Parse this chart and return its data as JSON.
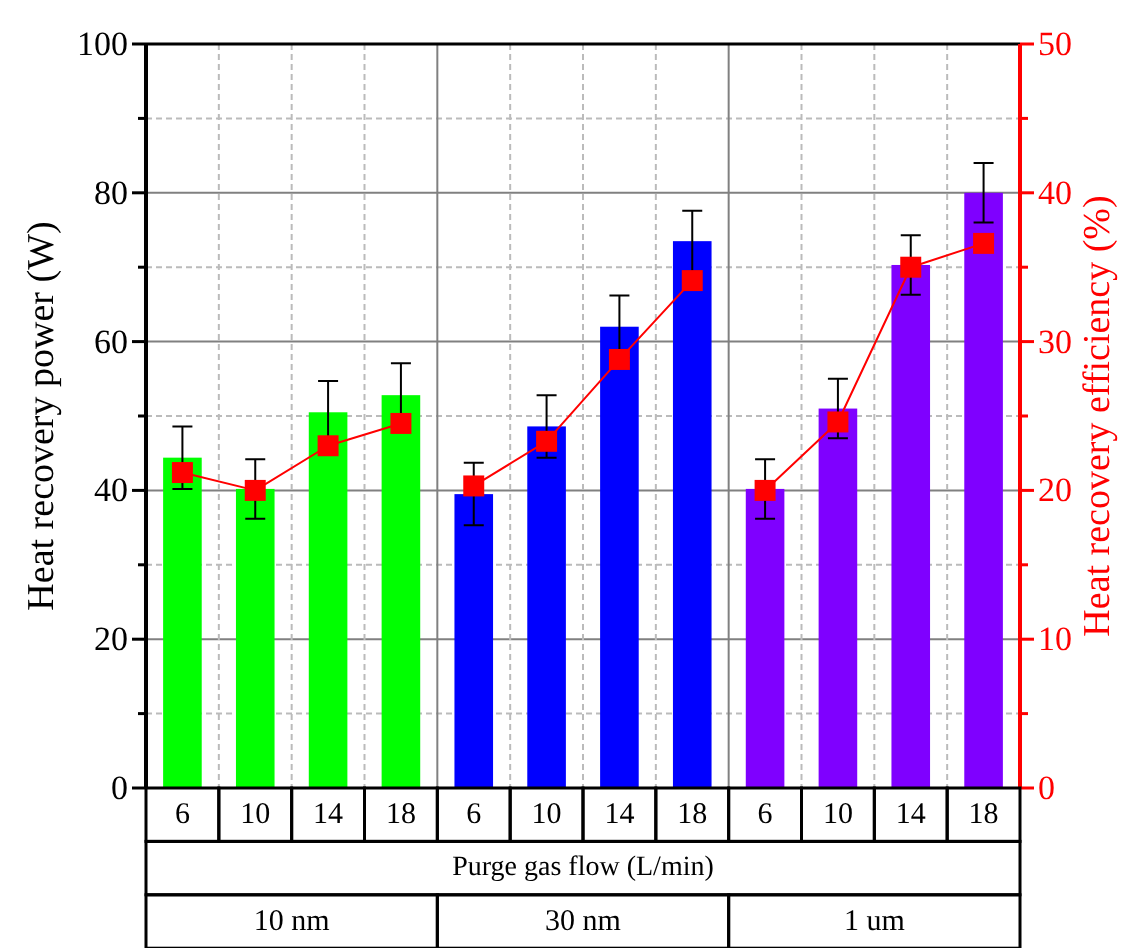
{
  "chart_data": {
    "type": "bar",
    "xlabel": "Purge gas flow (L/min)",
    "ylabel": "Heat recovery power  (W)",
    "y2label": "Heat recovery efficiency (%)",
    "categories": [
      "6",
      "10",
      "14",
      "18",
      "6",
      "10",
      "14",
      "18",
      "6",
      "10",
      "14",
      "18"
    ],
    "series": [
      {
        "colors": [
          "#00ff00",
          "#00ff00",
          "#00ff00",
          "#00ff00",
          "#0000ff",
          "#0000ff",
          "#0000ff",
          "#0000ff",
          "#7f00ff",
          "#7f00ff",
          "#7f00ff",
          "#7f00ff"
        ],
        "values": [
          44.4,
          40.2,
          50.5,
          52.8,
          39.5,
          48.6,
          62.0,
          73.5,
          40.2,
          51.0,
          70.3,
          80.0
        ],
        "errors": [
          4.2,
          4.0,
          4.2,
          4.3,
          4.2,
          4.2,
          4.2,
          4.1,
          4.0,
          4.0,
          4.0,
          4.0
        ]
      },
      {
        "type": "line",
        "axis": "y2",
        "color": "#ff0000",
        "marker": "square",
        "line_style": "solid",
        "values": [
          21.2,
          20.0,
          23.0,
          24.5,
          null,
          null,
          null,
          null,
          null,
          null,
          null,
          null
        ]
      },
      {
        "type": "line",
        "axis": "y2",
        "color": "#ff0000",
        "marker": "square",
        "line_style": "solid",
        "values": [
          null,
          null,
          null,
          null,
          20.3,
          23.3,
          28.8,
          34.1,
          null,
          null,
          null,
          null
        ]
      },
      {
        "type": "line",
        "axis": "y2",
        "color": "#ff0000",
        "marker": "square",
        "line_style": "solid",
        "values": [
          null,
          null,
          null,
          null,
          null,
          null,
          null,
          null,
          20.0,
          24.6,
          35.0,
          36.6
        ]
      }
    ],
    "ylim": [
      0,
      100
    ],
    "yticks": [
      0,
      {
        "value": 10,
        "label": null
      },
      20,
      {
        "value": 30,
        "label": null
      },
      40,
      {
        "value": 50,
        "label": null
      },
      60,
      {
        "value": 70,
        "label": null
      },
      80,
      {
        "value": 90,
        "label": null
      },
      100
    ],
    "y2lim": [
      0,
      50
    ],
    "y2ticks": [
      0,
      {
        "value": 5,
        "label": null
      },
      10,
      {
        "value": 15,
        "label": null
      },
      20,
      {
        "value": 25,
        "label": null
      },
      30,
      {
        "value": 35,
        "label": null
      },
      40,
      {
        "value": 45,
        "label": null
      },
      50
    ],
    "grid": true,
    "annotations": [
      "10 nm",
      "30 nm",
      "1 um"
    ]
  }
}
